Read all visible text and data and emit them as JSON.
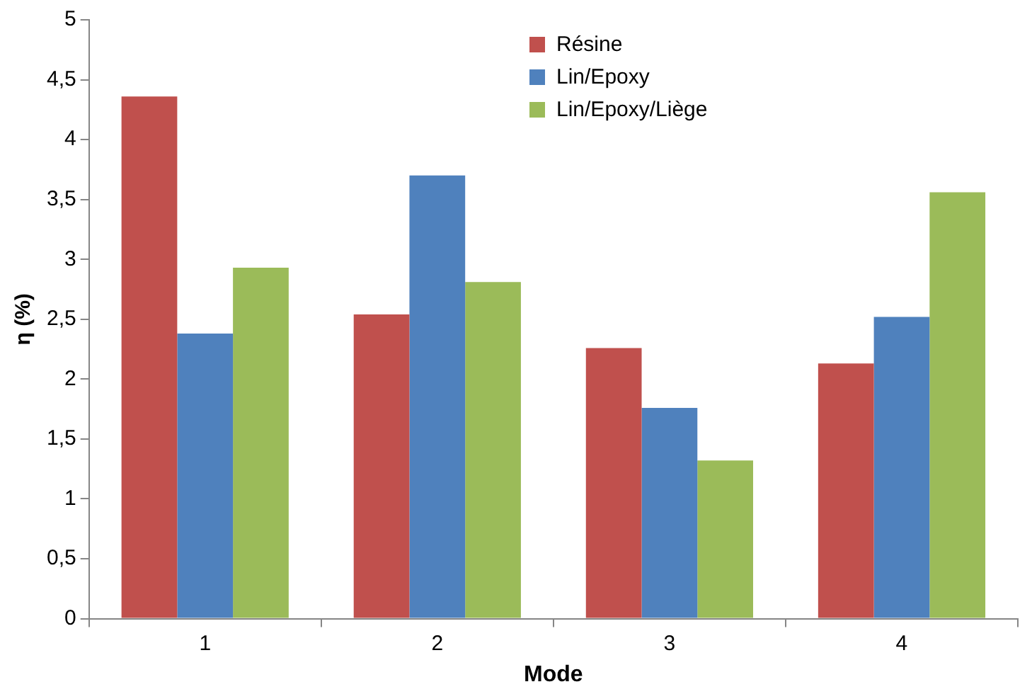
{
  "chart_data": {
    "type": "bar",
    "xlabel": "Mode",
    "ylabel": "η (%)",
    "categories": [
      "1",
      "2",
      "3",
      "4"
    ],
    "series": [
      {
        "name": "Résine",
        "color": "#c0504d",
        "values": [
          4.36,
          2.54,
          2.26,
          2.13
        ]
      },
      {
        "name": "Lin/Epoxy",
        "color": "#4f81bd",
        "values": [
          2.38,
          3.7,
          1.76,
          2.52
        ]
      },
      {
        "name": "Lin/Epoxy/Liège",
        "color": "#9bbb59",
        "values": [
          2.93,
          2.81,
          1.32,
          3.56
        ]
      }
    ],
    "ylim": [
      0,
      5
    ],
    "yticks": [
      0,
      {
        "value": 0.5,
        "label": "0,5"
      },
      1,
      {
        "value": 1.5,
        "label": "1,5"
      },
      2,
      {
        "value": 2.5,
        "label": "2,5"
      },
      3,
      {
        "value": 3.5,
        "label": "3,5"
      },
      4,
      {
        "value": 4.5,
        "label": "4,5"
      },
      5
    ],
    "grid": false,
    "legend": "top right"
  }
}
